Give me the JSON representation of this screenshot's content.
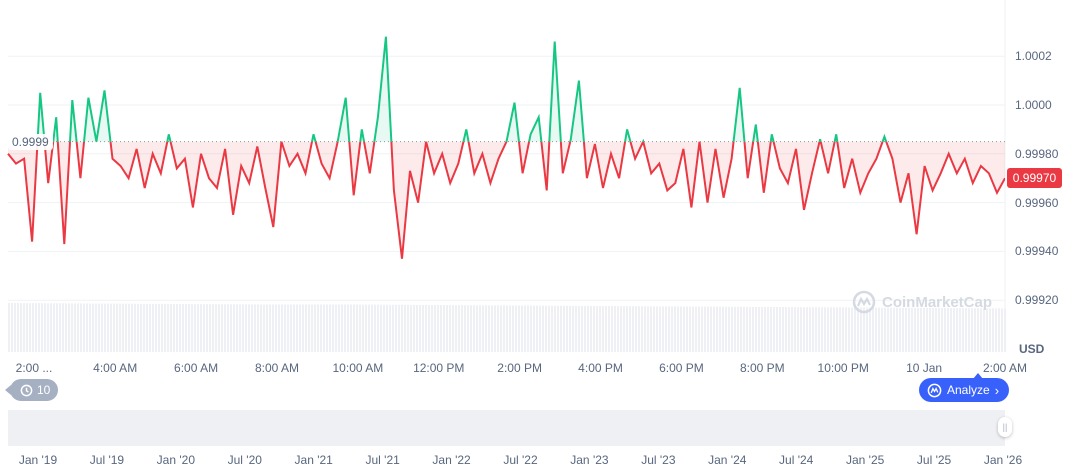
{
  "chart_data": {
    "type": "line",
    "title": "",
    "currency": "USD",
    "ylim": [
      0.9992,
      1.0003
    ],
    "y_ticks": [
      "1.0002",
      "1.0000",
      "0.99980",
      "0.99960",
      "0.99940",
      "0.99920"
    ],
    "y_tick_values": [
      1.0002,
      1.0,
      0.9998,
      0.9996,
      0.9994,
      0.9992
    ],
    "x_ticks": [
      "2:00 ...",
      "4:00 AM",
      "6:00 AM",
      "8:00 AM",
      "10:00 AM",
      "12:00 PM",
      "2:00 PM",
      "4:00 PM",
      "6:00 PM",
      "8:00 PM",
      "10:00 PM",
      "10 Jan",
      "2:00 AM"
    ],
    "x_tick_hours": [
      2,
      4,
      6,
      8,
      10,
      12,
      14,
      16,
      18,
      20,
      22,
      24,
      26
    ],
    "x_start_hour": 1.35,
    "x_end_hour": 26.0,
    "baseline_value": 0.99985,
    "baseline_label": "0.9999",
    "current_price": 0.9997,
    "current_price_label": "0.99970",
    "up_color": "#16c784",
    "down_color": "#ea3943",
    "values": [
      0.9998,
      0.99976,
      0.99978,
      0.99944,
      1.00005,
      0.99968,
      0.99995,
      0.99943,
      1.00002,
      0.9997,
      1.00003,
      0.99985,
      1.00006,
      0.99978,
      0.99975,
      0.9997,
      0.99982,
      0.99966,
      0.9998,
      0.99972,
      0.99988,
      0.99974,
      0.99978,
      0.99958,
      0.9998,
      0.9997,
      0.99966,
      0.99982,
      0.99955,
      0.99975,
      0.99968,
      0.99983,
      0.99966,
      0.9995,
      0.99985,
      0.99975,
      0.9998,
      0.99972,
      0.99988,
      0.99976,
      0.9997,
      0.99985,
      1.00003,
      0.99963,
      0.9999,
      0.99972,
      0.99995,
      1.00028,
      0.99965,
      0.99937,
      0.99973,
      0.9996,
      0.99985,
      0.99972,
      0.9998,
      0.99968,
      0.99976,
      0.9999,
      0.99972,
      0.9998,
      0.99968,
      0.99978,
      0.99985,
      1.00001,
      0.99972,
      0.99988,
      0.99995,
      0.99965,
      1.00026,
      0.99972,
      0.99986,
      1.0001,
      0.9997,
      0.99984,
      0.99966,
      0.9998,
      0.9997,
      0.9999,
      0.99978,
      0.99985,
      0.99972,
      0.99976,
      0.99965,
      0.99968,
      0.99982,
      0.99958,
      0.99985,
      0.9996,
      0.99982,
      0.99962,
      0.99978,
      1.00007,
      0.9997,
      0.99992,
      0.99964,
      0.99988,
      0.99974,
      0.99968,
      0.99982,
      0.99957,
      0.99972,
      0.99986,
      0.99972,
      0.99988,
      0.99966,
      0.99978,
      0.99964,
      0.99972,
      0.99978,
      0.99987,
      0.99978,
      0.9996,
      0.99972,
      0.99947,
      0.99975,
      0.99965,
      0.99972,
      0.9998,
      0.99972,
      0.99978,
      0.99968,
      0.99975,
      0.99972,
      0.99964,
      0.9997
    ],
    "volume_relative": [
      1.0,
      0.99,
      0.98,
      0.97,
      0.97,
      0.96,
      0.95,
      0.94,
      0.93,
      0.92,
      0.91,
      0.9,
      0.89
    ]
  },
  "navigator": {
    "labels": [
      "Jan '19",
      "Jul '19",
      "Jan '20",
      "Jul '20",
      "Jan '21",
      "Jul '21",
      "Jan '22",
      "Jul '22",
      "Jan '23",
      "Jul '23",
      "Jan '24",
      "Jul '24",
      "Jan '25",
      "Jul '25",
      "Jan '26"
    ]
  },
  "controls": {
    "history_count": "10",
    "analyze_label": "Analyze",
    "watermark": "CoinMarketCap"
  }
}
